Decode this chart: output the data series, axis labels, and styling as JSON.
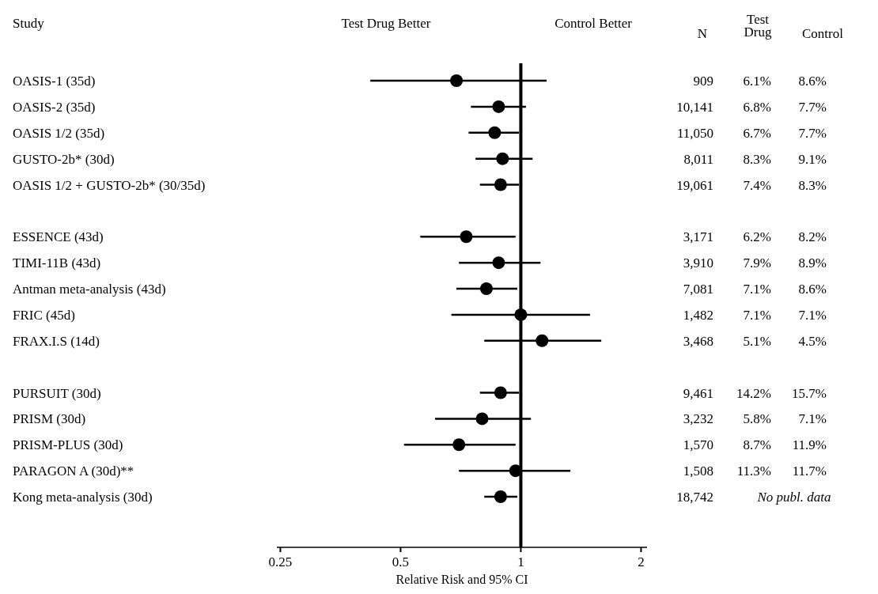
{
  "chart_data": {
    "type": "scatter",
    "orientation": "horizontal",
    "ylabel": "Study",
    "xlabel": "Relative Risk and 95% CI",
    "log": "x",
    "marker": "circle",
    "categories": [
      "OASIS-1 (35d)",
      "OASIS-2 (35d)",
      "OASIS 1/2 (35d)",
      "GUSTO-2b* (30d)",
      "OASIS 1/2 + GUSTO-2b* (30/35d)",
      null,
      "ESSENCE (43d)",
      "TIMI-11B (43d)",
      "Antman meta-analysis (43d)",
      "FRIC (45d)",
      "FRAX.I.S (14d)",
      null,
      "PURSUIT (30d)",
      "PRISM (30d)",
      "PRISM-PLUS (30d)",
      "PARAGON A (30d)**",
      "Kong meta-analysis (30d)"
    ],
    "series": [
      {
        "color": "#000000",
        "values": [
          0.69,
          0.88,
          0.86,
          0.9,
          0.89,
          null,
          0.73,
          0.88,
          0.82,
          1.0,
          1.13,
          null,
          0.89,
          0.8,
          0.7,
          0.97,
          0.89
        ],
        "errors": [
          [
            0.42,
            1.16
          ],
          [
            0.75,
            1.03
          ],
          [
            0.74,
            0.99
          ],
          [
            0.77,
            1.07
          ],
          [
            0.79,
            0.99
          ],
          null,
          [
            0.56,
            0.97
          ],
          [
            0.7,
            1.12
          ],
          [
            0.69,
            0.98
          ],
          [
            0.67,
            1.49
          ],
          [
            0.81,
            1.59
          ],
          null,
          [
            0.79,
            0.99
          ],
          [
            0.61,
            1.06
          ],
          [
            0.51,
            0.97
          ],
          [
            0.7,
            1.33
          ],
          [
            0.81,
            0.98
          ]
        ]
      }
    ],
    "xlim": [
      0.245,
      2.07
    ],
    "xticks": [
      0.25,
      0.5,
      1,
      2
    ],
    "ref_lines": [
      {
        "axis": "x",
        "value": 1,
        "color": "#000000"
      }
    ],
    "annotations": [
      "Test Drug Better",
      "Control Better",
      "N",
      "Test Drug",
      "Control",
      "909",
      "6.1%",
      "8.6%",
      "10,141",
      "6.8%",
      "7.7%",
      "11,050",
      "6.7%",
      "7.7%",
      "8,011",
      "8.3%",
      "9.1%",
      "19,061",
      "7.4%",
      "8.3%",
      "3,171",
      "6.2%",
      "8.2%",
      "3,910",
      "7.9%",
      "8.9%",
      "7,081",
      "7.1%",
      "8.6%",
      "1,482",
      "7.1%",
      "7.1%",
      "3,468",
      "5.1%",
      "4.5%",
      "9,461",
      "14.2%",
      "15.7%",
      "3,232",
      "5.8%",
      "7.1%",
      "1,570",
      "8.7%",
      "11.9%",
      "1,508",
      "11.3%",
      "11.7%",
      "18,742",
      "No publ. data"
    ]
  }
}
